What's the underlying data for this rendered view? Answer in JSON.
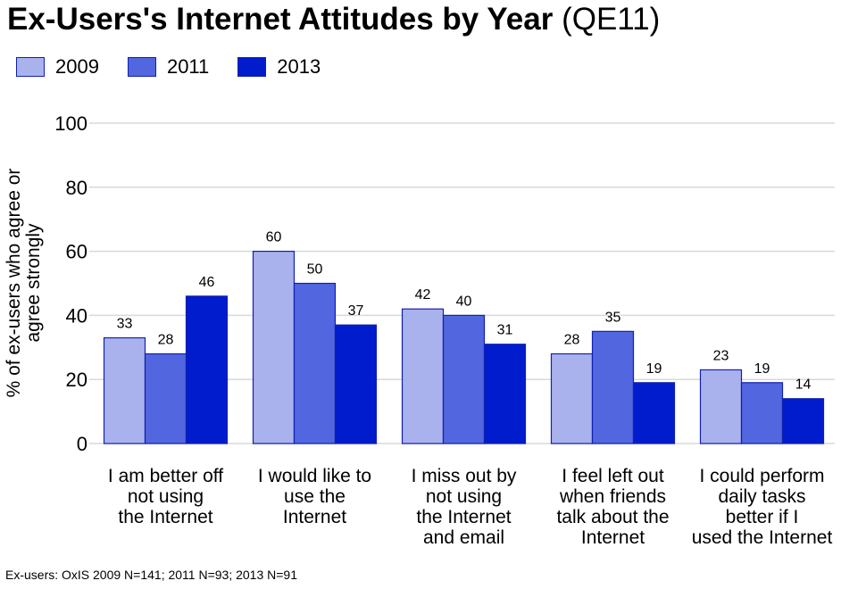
{
  "title": {
    "main": "Ex-Users's Internet Attitudes by Year",
    "sub": "(QE11)"
  },
  "colors": {
    "2009": "#aab2ee",
    "2011": "#5266df",
    "2013": "#001ccc",
    "outline": "#1020b0",
    "grid": "#d9d9d9"
  },
  "footnote": "Ex-users: OxIS 2009 N=141; 2011 N=93; 2013 N=91",
  "chart_data": {
    "type": "bar",
    "title": "Ex-Users's Internet Attitudes by Year (QE11)",
    "xlabel": "",
    "ylabel": "% of ex-users who agree or agree strongly",
    "ylabel_lines": [
      "% of ex-users who agree or",
      "agree strongly"
    ],
    "ylim": [
      0,
      100
    ],
    "yticks": [
      0,
      20,
      40,
      60,
      80,
      100
    ],
    "grid": true,
    "legend_position": "top-left",
    "categories": [
      [
        "I am better off",
        "not using",
        "the Internet"
      ],
      [
        "I would like to",
        "use the",
        "Internet"
      ],
      [
        "I miss out by",
        "not using",
        "the Internet",
        "and email"
      ],
      [
        "I feel left out",
        "when friends",
        "talk about the",
        "Internet"
      ],
      [
        "I could perform",
        "daily tasks",
        "better if I",
        "used the Internet"
      ]
    ],
    "series": [
      {
        "name": "2009",
        "values": [
          33,
          60,
          42,
          28,
          23
        ]
      },
      {
        "name": "2011",
        "values": [
          28,
          50,
          40,
          35,
          19
        ]
      },
      {
        "name": "2013",
        "values": [
          46,
          37,
          31,
          19,
          14
        ]
      }
    ]
  }
}
